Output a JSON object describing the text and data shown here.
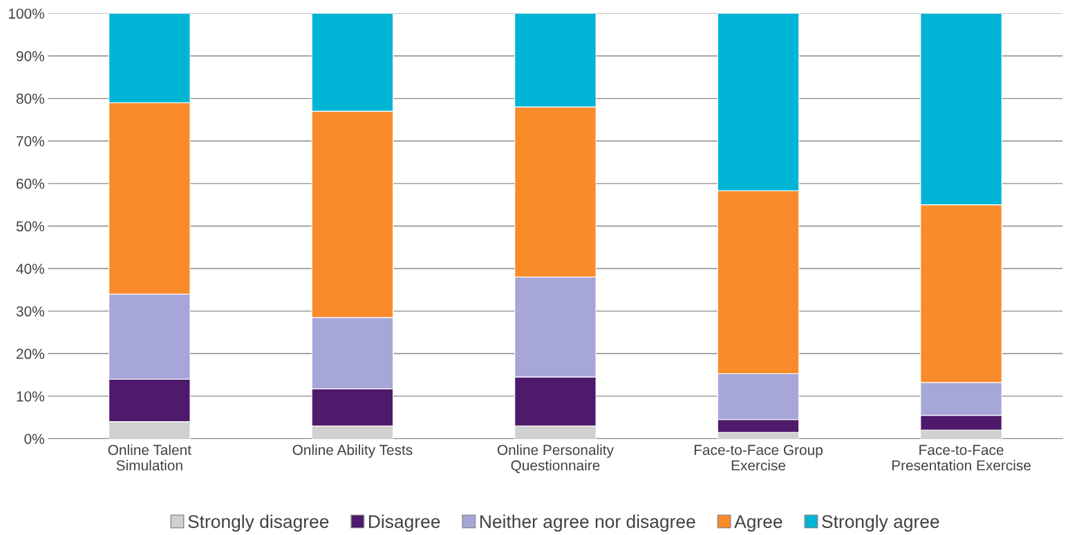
{
  "chart_data": {
    "type": "bar",
    "stacked": true,
    "categories": [
      "Online Talent\nSimulation",
      "Online Ability Tests",
      "Online Personality\nQuestionnaire",
      "Face-to-Face Group\nExercise",
      "Face-to-Face\nPresentation Exercise"
    ],
    "series": [
      {
        "name": "Strongly disagree",
        "color": "#d0d0d0",
        "values": [
          4,
          3,
          3,
          1.5,
          2
        ]
      },
      {
        "name": "Disagree",
        "color": "#4f1a6b",
        "values": [
          10,
          8.7,
          11.5,
          3,
          3.5
        ]
      },
      {
        "name": "Neither agree nor disagree",
        "color": "#a6a6d9",
        "values": [
          20,
          16.8,
          23.5,
          10.8,
          7.7
        ]
      },
      {
        "name": "Agree",
        "color": "#f98b2b",
        "values": [
          45,
          48.5,
          40,
          43,
          41.8
        ]
      },
      {
        "name": "Strongly agree",
        "color": "#00b4d6",
        "values": [
          21,
          23,
          22,
          41.7,
          45
        ]
      }
    ],
    "ylim": [
      0,
      100
    ],
    "yticks": [
      {
        "value": 0,
        "label": "0%"
      },
      {
        "value": 10,
        "label": "10%"
      },
      {
        "value": 20,
        "label": "20%"
      },
      {
        "value": 30,
        "label": "30%"
      },
      {
        "value": 40,
        "label": "40%"
      },
      {
        "value": 50,
        "label": "50%"
      },
      {
        "value": 60,
        "label": "60%"
      },
      {
        "value": 70,
        "label": "70%"
      },
      {
        "value": 80,
        "label": "80%"
      },
      {
        "value": 90,
        "label": "90%"
      },
      {
        "value": 100,
        "label": "100%"
      }
    ],
    "grid": "y",
    "legend": "bottom"
  }
}
